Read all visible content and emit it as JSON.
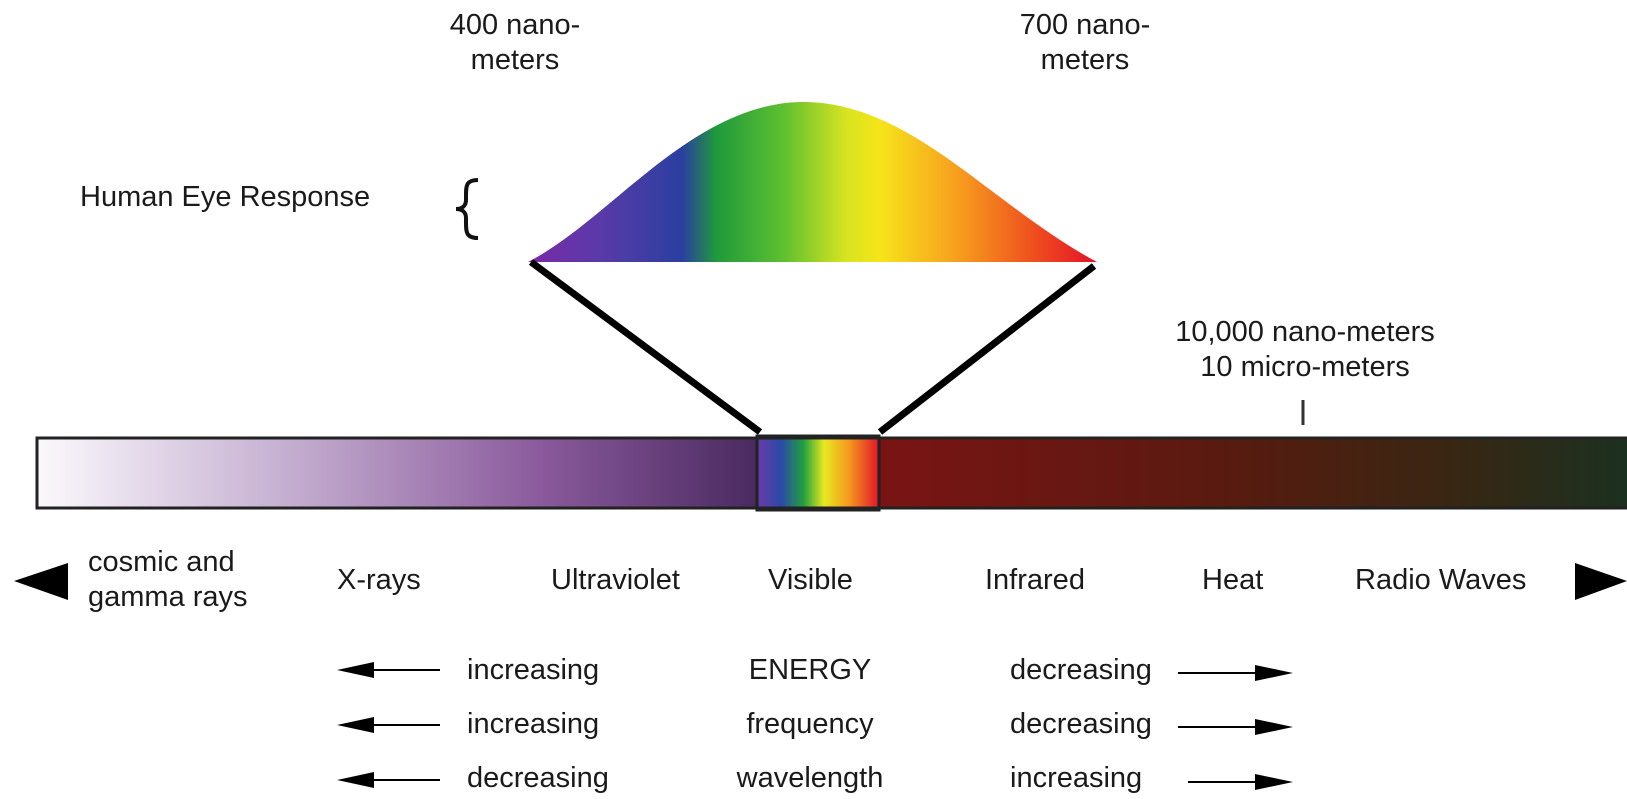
{
  "wavelength_labels": {
    "nm400_line1": "400 nano-",
    "nm400_line2": "meters",
    "nm700_line1": "700 nano-",
    "nm700_line2": "meters",
    "nm10000_line1": "10,000 nano-meters",
    "nm10000_line2": "10 micro-meters"
  },
  "eye_response_label": "Human Eye Response",
  "bands": {
    "cosmic_line1": "cosmic and",
    "cosmic_line2": "gamma rays",
    "xrays": "X-rays",
    "ultraviolet": "Ultraviolet",
    "visible": "Visible",
    "infrared": "Infrared",
    "heat": "Heat",
    "radio": "Radio Waves"
  },
  "trends": [
    {
      "left": "increasing",
      "quantity": "ENERGY",
      "right": "decreasing"
    },
    {
      "left": "increasing",
      "quantity": "frequency",
      "right": "decreasing"
    },
    {
      "left": "decreasing",
      "quantity": "wavelength",
      "right": "increasing"
    }
  ],
  "colors": {
    "ultraviolet_end": "#4a2a60",
    "infrared_start": "#7a1414",
    "radio_end": "#1c3020",
    "arrow": "#000000"
  }
}
